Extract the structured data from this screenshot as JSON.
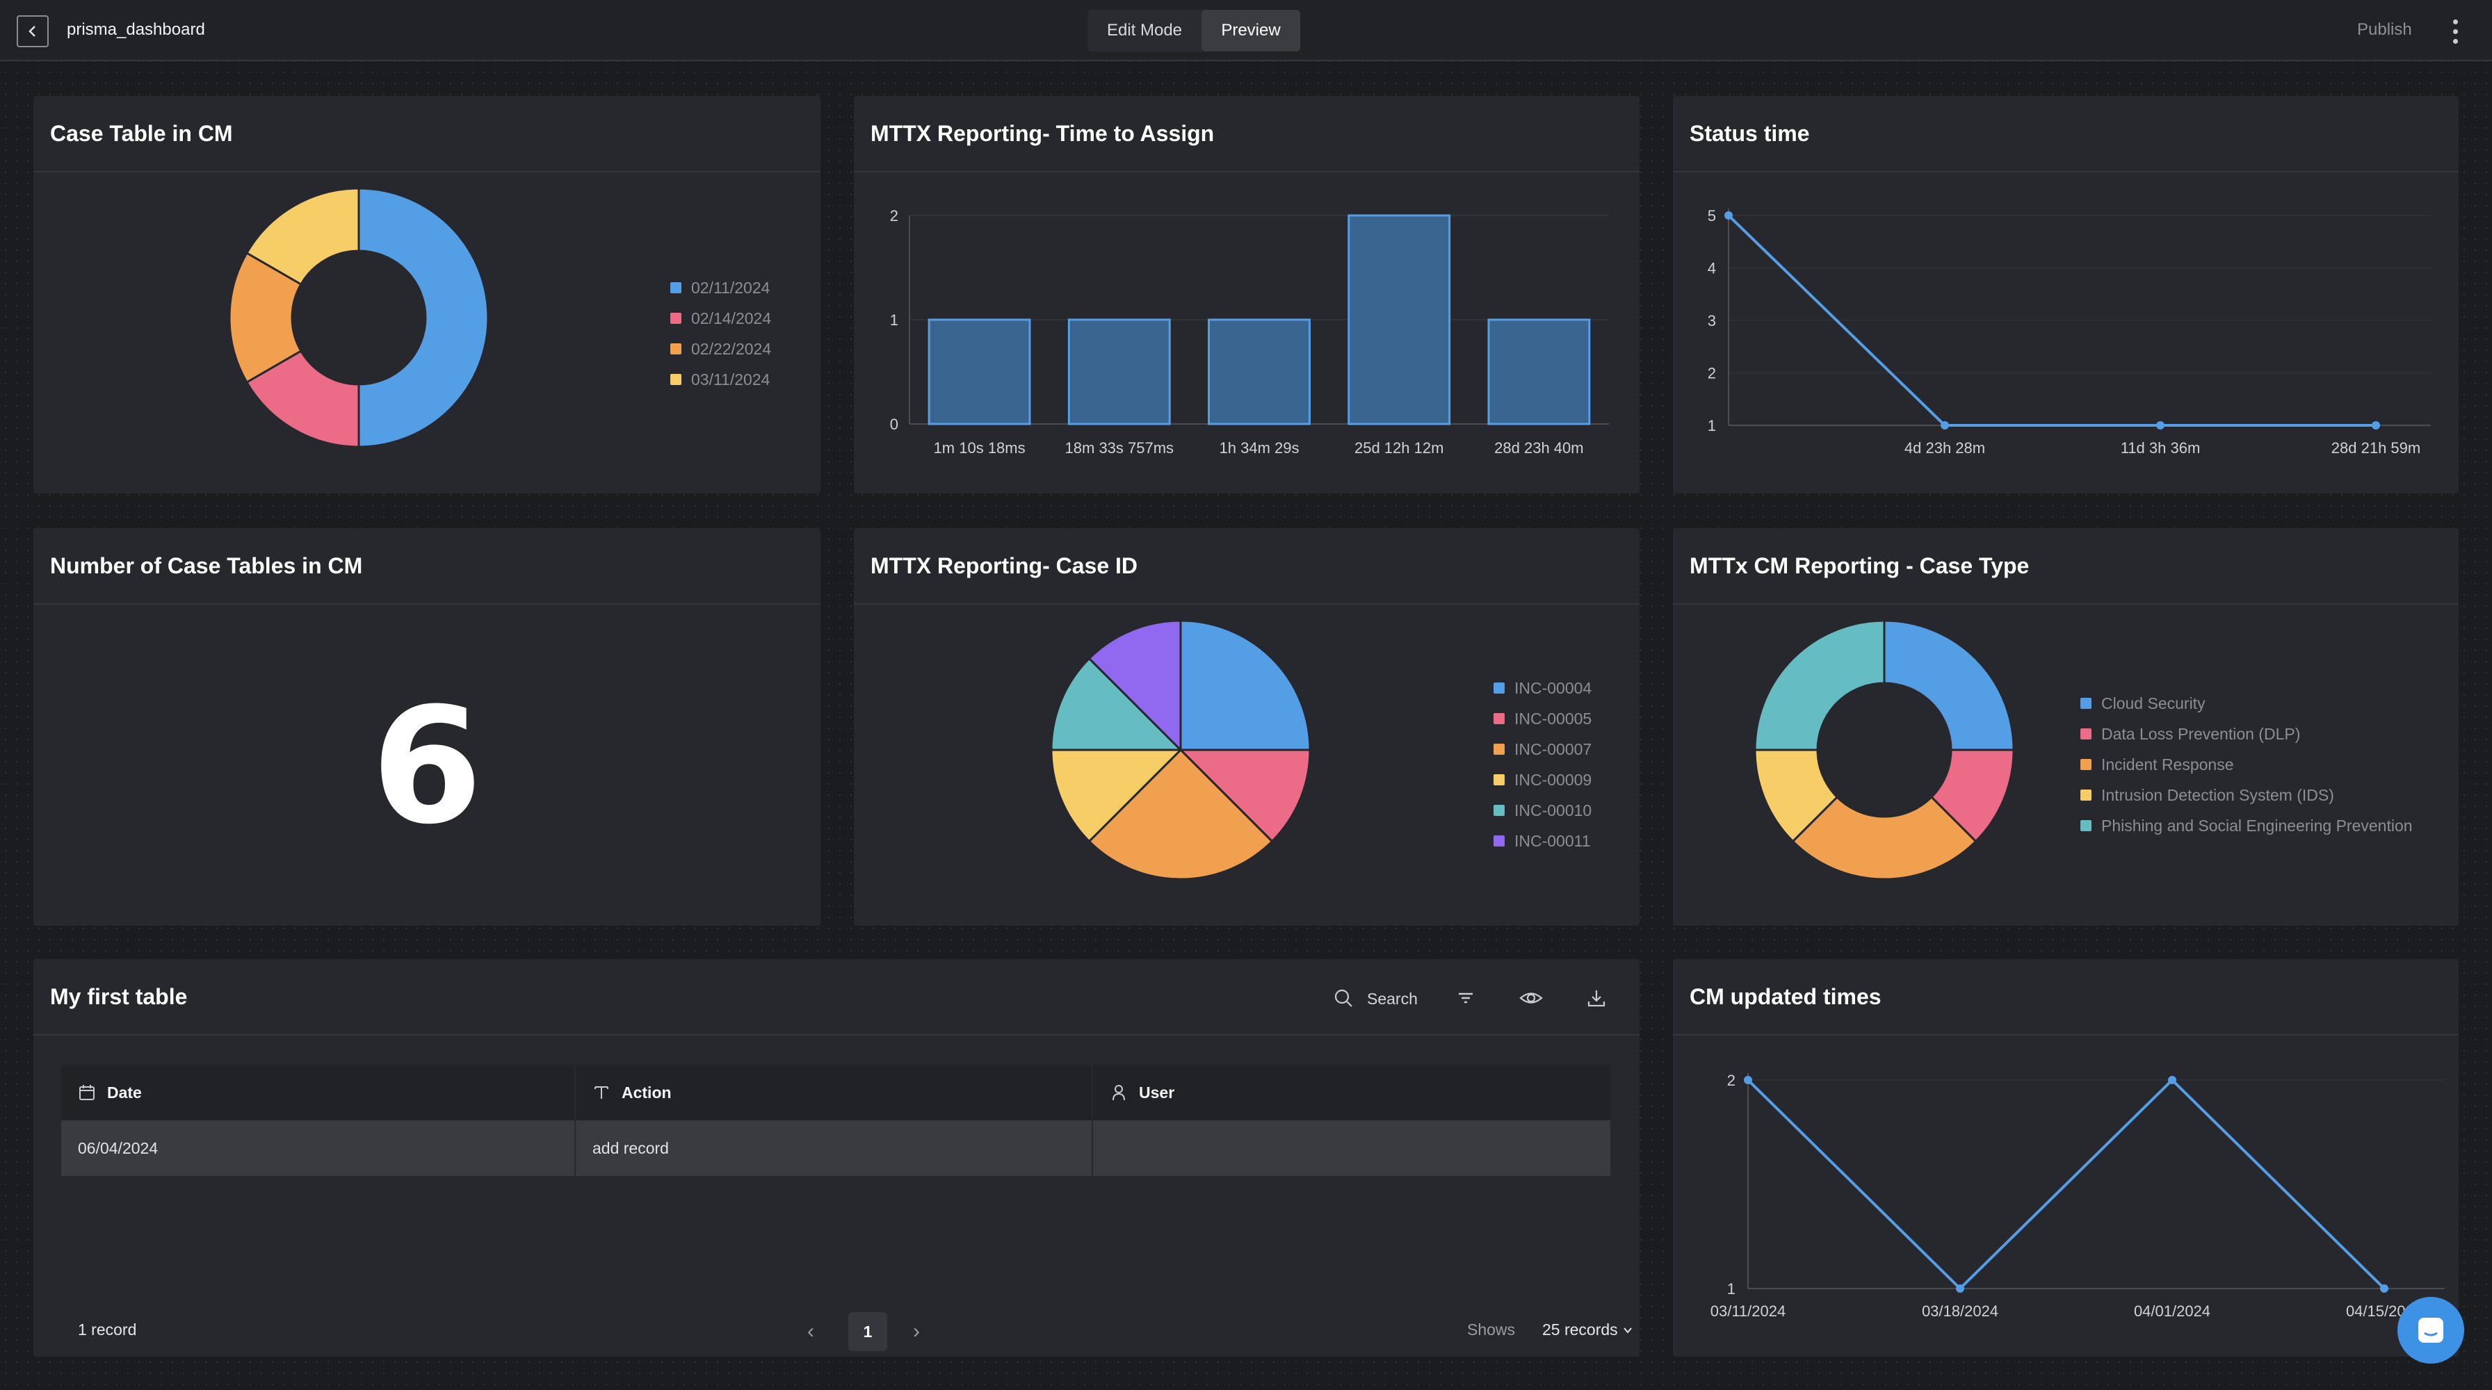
{
  "topbar": {
    "title": "prisma_dashboard",
    "edit_mode": "Edit Mode",
    "preview": "Preview",
    "publish": "Publish"
  },
  "widgets": {
    "case_table": {
      "title": "Case Table in CM",
      "legend": [
        "02/11/2024",
        "02/14/2024",
        "02/22/2024",
        "03/11/2024"
      ]
    },
    "mttx_assign": {
      "title": "MTTX Reporting- Time to Assign"
    },
    "status_time": {
      "title": "Status time"
    },
    "number_case_tables": {
      "title": "Number of Case Tables in CM",
      "value": "6"
    },
    "mttx_case_id": {
      "title": "MTTX Reporting- Case ID",
      "legend": [
        "INC-00004",
        "INC-00005",
        "INC-00007",
        "INC-00009",
        "INC-00010",
        "INC-00011"
      ]
    },
    "mttx_case_type": {
      "title": "MTTx CM Reporting - Case Type",
      "legend": [
        "Cloud Security",
        "Data Loss Prevention (DLP)",
        "Incident Response",
        "Intrusion Detection System (IDS)",
        "Phishing and Social Engineering Prevention"
      ]
    },
    "my_first_table": {
      "title": "My first table",
      "search_label": "Search",
      "columns": [
        "Date",
        "Action",
        "User"
      ],
      "rows": [
        [
          "06/04/2024",
          "add record",
          ""
        ]
      ],
      "record_count": "1 record",
      "current_page": "1",
      "shows_label": "Shows",
      "records_per_page": "25 records"
    },
    "cm_updated_times": {
      "title": "CM updated times"
    }
  },
  "icons": {
    "back": "chevron-left-icon",
    "more": "kebab-menu-icon",
    "search": "search-icon",
    "filter": "filter-icon",
    "visibility": "eye-icon",
    "download": "download-icon",
    "calendar": "calendar-icon",
    "text": "text-type-icon",
    "user": "user-icon",
    "chat": "chat-bubble-icon"
  },
  "colors": {
    "blue": "#549ee6",
    "pink": "#ec6b86",
    "orange": "#f1a04f",
    "yellow": "#f7cd67",
    "teal": "#65bcc3",
    "purple": "#9168f0",
    "accent": "#3e92e6"
  },
  "chart_data": [
    {
      "id": "case_table",
      "type": "pie",
      "donut": true,
      "categories": [
        "02/11/2024",
        "02/14/2024",
        "02/22/2024",
        "03/11/2024"
      ],
      "values": [
        3,
        1,
        1,
        1
      ]
    },
    {
      "id": "mttx_assign",
      "type": "bar",
      "categories": [
        "1m 10s 18ms",
        "18m 33s 757ms",
        "1h 34m 29s",
        "25d 12h 12m",
        "28d 23h 40m"
      ],
      "values": [
        1,
        1,
        1,
        2,
        1
      ],
      "ylim": [
        0,
        2
      ],
      "yticks": [
        0,
        1,
        2
      ]
    },
    {
      "id": "status_time",
      "type": "line",
      "x": [
        "",
        "4d 23h 28m",
        "11d 3h 36m",
        "28d 21h 59m"
      ],
      "values": [
        5,
        1,
        1,
        1
      ],
      "ylim": [
        1,
        5
      ],
      "yticks": [
        1,
        2,
        3,
        4,
        5
      ]
    },
    {
      "id": "mttx_case_id",
      "type": "pie",
      "donut": false,
      "categories": [
        "INC-00004",
        "INC-00005",
        "INC-00007",
        "INC-00009",
        "INC-00010",
        "INC-00011"
      ],
      "values": [
        1,
        0.5,
        1,
        0.5,
        0.5,
        0.5
      ]
    },
    {
      "id": "mttx_case_type",
      "type": "pie",
      "donut": true,
      "categories": [
        "Cloud Security",
        "Data Loss Prevention (DLP)",
        "Incident Response",
        "Intrusion Detection System (IDS)",
        "Phishing and Social Engineering Prevention"
      ],
      "values": [
        1,
        0.5,
        1,
        0.5,
        1
      ]
    },
    {
      "id": "cm_updated_times",
      "type": "line",
      "x": [
        "03/11/2024",
        "03/18/2024",
        "04/01/2024",
        "04/15/2024"
      ],
      "values": [
        2,
        1,
        2,
        1
      ],
      "ylim": [
        1,
        2
      ],
      "yticks": [
        1,
        2
      ]
    }
  ]
}
